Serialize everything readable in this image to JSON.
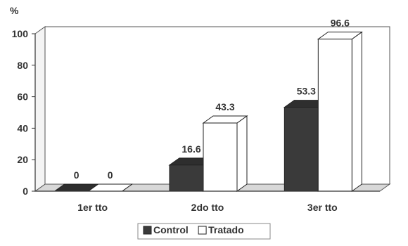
{
  "chart_data": {
    "type": "bar",
    "style": "3d-clustered-column",
    "ylabel": "%",
    "ylim": [
      0,
      100
    ],
    "yticks": [
      0,
      20,
      40,
      60,
      80,
      100
    ],
    "grid": false,
    "legend_position": "bottom",
    "categories": [
      "1er tto",
      "2do tto",
      "3er tto"
    ],
    "series": [
      {
        "name": "Control",
        "values": [
          0,
          16.6,
          53.3
        ],
        "color": "#3a3a3a"
      },
      {
        "name": "Tratado",
        "values": [
          0,
          43.3,
          96.6
        ],
        "color": "#ffffff"
      }
    ],
    "data_labels": [
      [
        "0",
        "16.6",
        "53.3"
      ],
      [
        "0",
        "43.3",
        "96.6"
      ]
    ]
  }
}
